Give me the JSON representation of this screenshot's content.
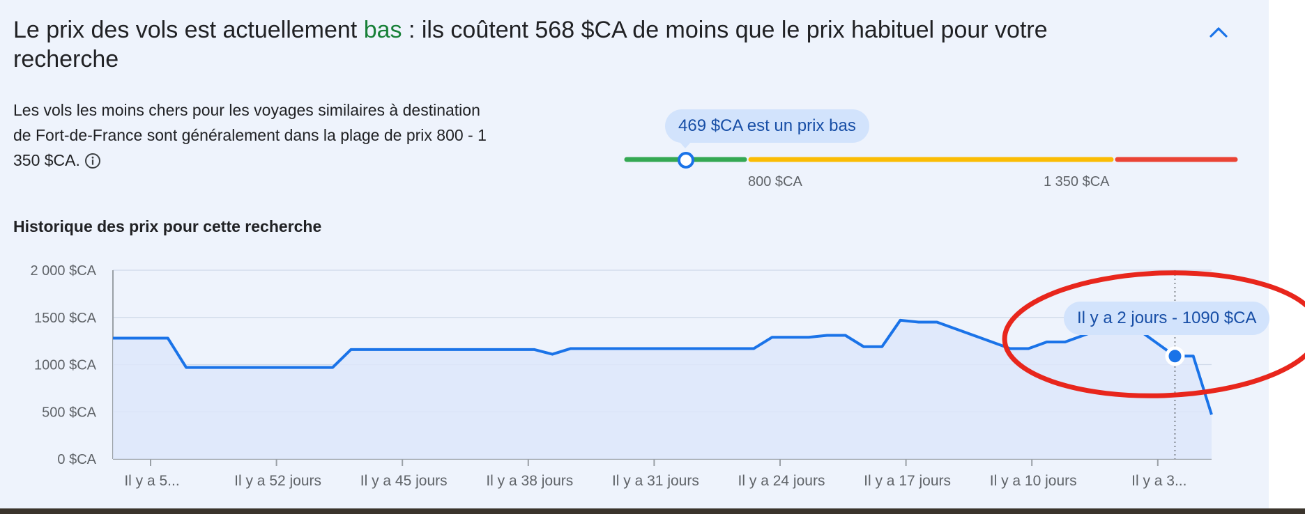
{
  "header": {
    "headline_prefix": "Le prix des vols est actuellement ",
    "headline_level": "bas",
    "headline_suffix": " : ils coûtent 568 $CA de moins que le prix habituel pour votre recherche",
    "collapse_icon": "chevron-up-icon"
  },
  "summary": {
    "description": "Les vols les moins chers pour les voyages similaires à destination de Fort-de-France sont généralement dans la plage de prix 800 - 1 350 $CA.",
    "info_icon": "info-icon"
  },
  "price_range": {
    "current_label": "469 $CA est un prix bas",
    "current_value": 469,
    "low_threshold": 800,
    "high_threshold": 1350,
    "low_label": "800 $CA",
    "high_label": "1 350 $CA",
    "colors": {
      "low": "#34a853",
      "typical": "#fbbc04",
      "high": "#ea4335",
      "marker": "#1a73e8"
    }
  },
  "history": {
    "title": "Historique des prix pour cette recherche",
    "tooltip": "Il y a 2 jours - 1090 $CA"
  },
  "chart_data": {
    "type": "area",
    "title": "",
    "xlabel": "",
    "ylabel": "",
    "ylim": [
      0,
      2000
    ],
    "yticks": [
      0,
      500,
      1000,
      1500,
      2000
    ],
    "ytick_labels": [
      "0 $CA",
      "500 $CA",
      "1000 $CA",
      "1500 $CA",
      "2 000 $CA"
    ],
    "x_tick_labels": [
      "Il y a 5...",
      "Il y a 52 jours",
      "Il y a 45 jours",
      "Il y a 38 jours",
      "Il y a 31 jours",
      "Il y a 24 jours",
      "Il y a 17 jours",
      "Il y a 10 jours",
      "Il y a 3..."
    ],
    "x_days_ago": [
      60,
      57,
      56,
      48,
      47,
      46,
      37,
      36,
      35,
      25,
      24,
      22,
      21,
      20,
      19,
      18,
      17,
      16,
      15,
      11,
      10,
      9,
      8,
      6,
      5,
      4,
      2,
      1,
      0
    ],
    "values": [
      1280,
      1280,
      970,
      970,
      1160,
      1160,
      1160,
      1110,
      1170,
      1170,
      1290,
      1290,
      1310,
      1310,
      1190,
      1190,
      1470,
      1450,
      1450,
      1170,
      1170,
      1240,
      1240,
      1380,
      1380,
      1370,
      1090,
      1090,
      470
    ],
    "highlight": {
      "days_ago": 2,
      "value": 1090
    },
    "grid": true,
    "colors": {
      "line": "#1a73e8",
      "fill": "#dde6fa",
      "grid": "#cfd8e8",
      "annotation": "#e8261c"
    }
  }
}
